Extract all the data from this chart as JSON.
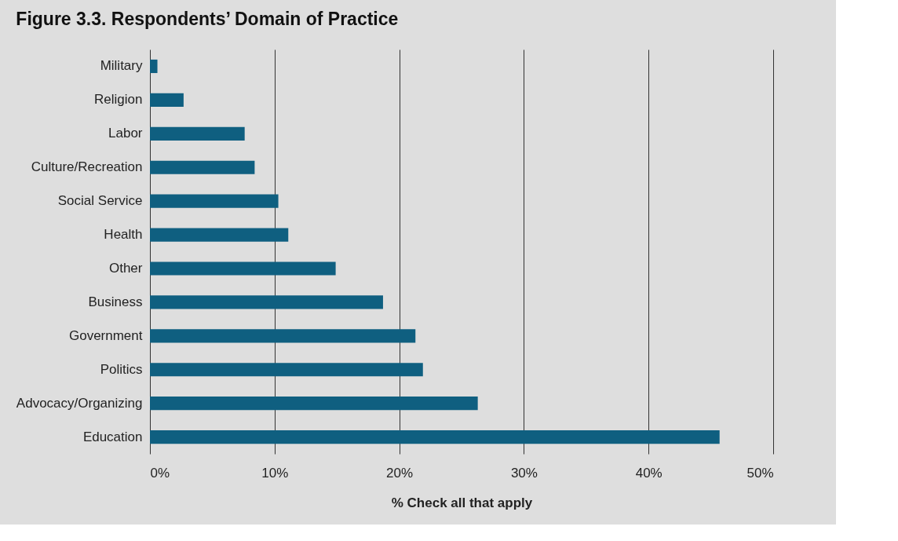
{
  "chart_data": {
    "type": "bar",
    "orientation": "horizontal",
    "title": "Figure 3.3. Respondents’ Domain of Practice",
    "xlabel": "% Check all that apply",
    "categories": [
      "Military",
      "Religion",
      "Labor",
      "Culture/Recreation",
      "Social Service",
      "Health",
      "Other",
      "Business",
      "Government",
      "Politics",
      "Advocacy/Organizing",
      "Education"
    ],
    "values": [
      0.6,
      2.7,
      7.6,
      8.4,
      10.3,
      11.1,
      14.9,
      18.7,
      21.3,
      21.9,
      26.3,
      45.7
    ],
    "color": "#0f5f80",
    "xlim": [
      0,
      50
    ],
    "xticks": [
      {
        "value": 0,
        "label": "0%"
      },
      {
        "value": 10,
        "label": "10%"
      },
      {
        "value": 20,
        "label": "20%"
      },
      {
        "value": 30,
        "label": "30%"
      },
      {
        "value": 40,
        "label": "40%"
      },
      {
        "value": 50,
        "label": "50%"
      }
    ],
    "grid": "x"
  }
}
